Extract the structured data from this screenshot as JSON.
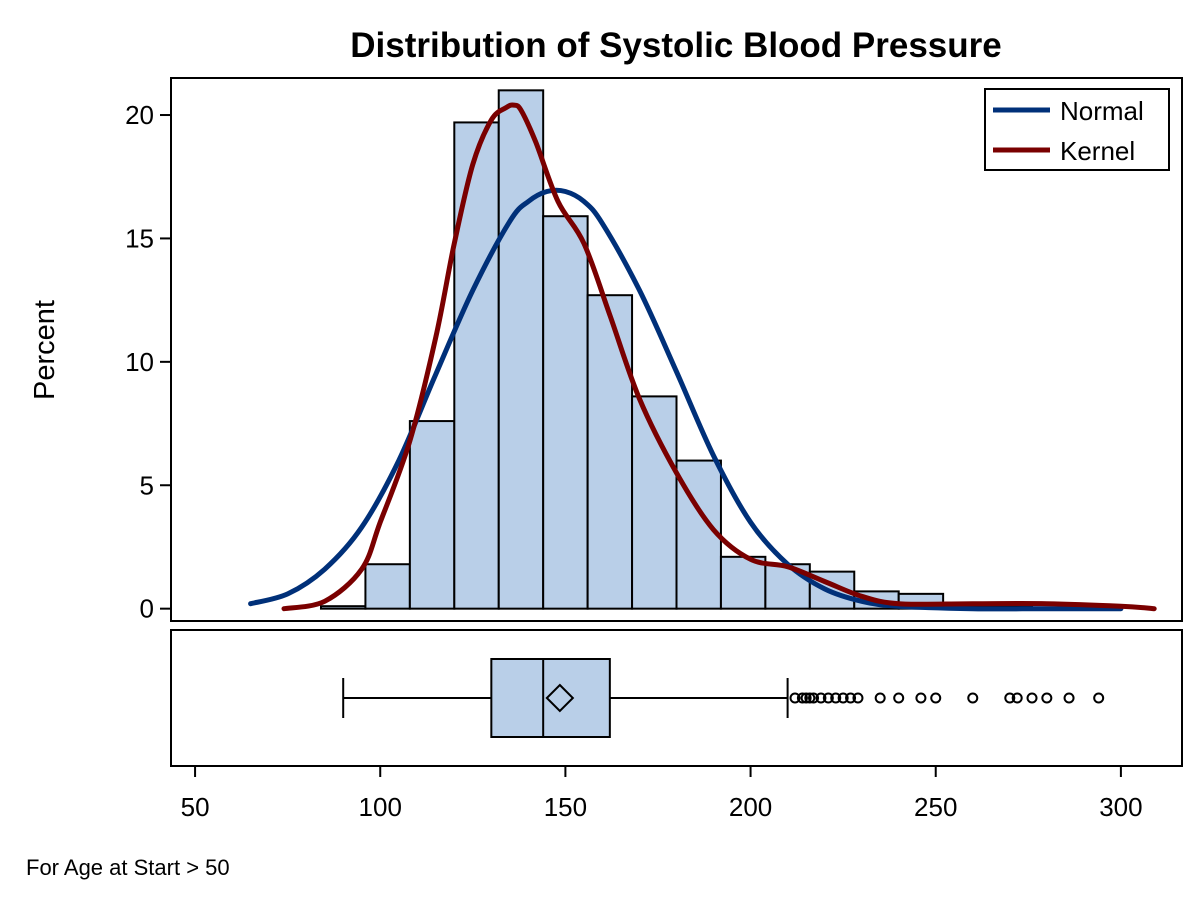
{
  "chart_data": {
    "type": "bar",
    "title": "Distribution of Systolic Blood Pressure",
    "ylabel": "Percent",
    "xlabel": "",
    "footnote": "For Age at Start > 50",
    "xlim": [
      43.5,
      316.5
    ],
    "ylim": [
      -0.5,
      21.5
    ],
    "x_ticks": [
      50,
      100,
      150,
      200,
      250,
      300
    ],
    "y_ticks": [
      0,
      5,
      10,
      15,
      20
    ],
    "grid": false,
    "legend_position": "top-right",
    "colors": {
      "bar_fill": "#b9cfe8",
      "bar_stroke": "#000000",
      "normal": "#003079",
      "kernel": "#7a0000"
    },
    "histogram": {
      "bin_edges": [
        84,
        96,
        108,
        120,
        132,
        144,
        156,
        168,
        180,
        192,
        204,
        216,
        228,
        240,
        252,
        264,
        276,
        288,
        300
      ],
      "percent": [
        0.1,
        1.8,
        7.6,
        19.7,
        21.0,
        15.9,
        12.7,
        8.6,
        6.0,
        2.1,
        1.8,
        1.5,
        0.7,
        0.6,
        0.1,
        0.1,
        0.2,
        0.1
      ]
    },
    "series": [
      {
        "name": "Normal",
        "x": [
          65,
          75,
          85,
          95,
          105,
          115,
          125,
          135,
          140,
          145,
          150,
          155,
          160,
          170,
          180,
          190,
          200,
          210,
          220,
          230,
          240,
          260,
          280,
          300
        ],
        "y": [
          0.2,
          0.6,
          1.6,
          3.3,
          6.0,
          9.5,
          12.9,
          15.7,
          16.5,
          16.9,
          16.9,
          16.5,
          15.6,
          12.9,
          9.6,
          6.2,
          3.5,
          1.8,
          0.8,
          0.3,
          0.1,
          0.0,
          0.0,
          0.0
        ]
      },
      {
        "name": "Kernel",
        "x": [
          74,
          85,
          95,
          100,
          108,
          115,
          120,
          125,
          130,
          134,
          136,
          138,
          142,
          148,
          155,
          162,
          170,
          180,
          190,
          200,
          210,
          220,
          230,
          240,
          260,
          280,
          300,
          309
        ],
        "y": [
          0.0,
          0.3,
          1.6,
          3.5,
          6.8,
          11.0,
          14.8,
          18.0,
          19.8,
          20.3,
          20.4,
          20.2,
          18.9,
          16.5,
          14.8,
          11.9,
          8.5,
          5.5,
          3.2,
          2.0,
          1.7,
          1.1,
          0.5,
          0.2,
          0.2,
          0.2,
          0.1,
          0.0
        ]
      }
    ],
    "boxplot": {
      "whisker_low": 90,
      "q1": 130,
      "median": 144,
      "mean": 148.5,
      "q3": 162,
      "whisker_high": 210,
      "outliers": [
        212,
        214,
        215,
        216,
        217,
        219,
        221,
        223,
        225,
        227,
        229,
        235,
        240,
        246,
        250,
        260,
        270,
        272,
        276,
        280,
        286,
        294
      ]
    }
  }
}
